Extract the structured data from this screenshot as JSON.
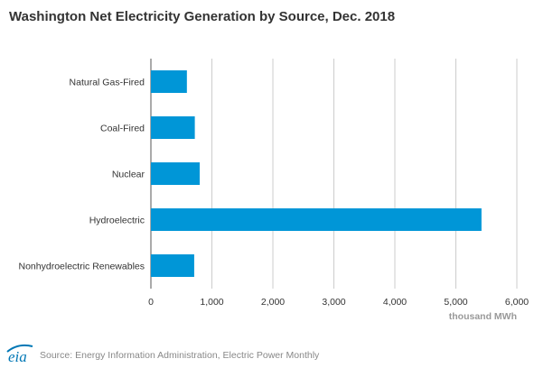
{
  "title": "Washington Net Electricity Generation by Source, Dec. 2018",
  "colors": {
    "bar": "#0096d7",
    "grid": "#cccccc",
    "axis": "#555555",
    "logo": "#0077b5"
  },
  "footer": {
    "logo_text": "eia",
    "source": "Source: Energy Information Administration, Electric Power Monthly"
  },
  "chart_data": {
    "type": "bar",
    "orientation": "horizontal",
    "title": "Washington Net Electricity Generation by Source, Dec. 2018",
    "categories": [
      "Natural Gas-Fired",
      "Coal-Fired",
      "Nuclear",
      "Hydroelectric",
      "Nonhydroelectric Renewables"
    ],
    "values": [
      590,
      720,
      800,
      5420,
      710
    ],
    "xlabel": "thousand MWh",
    "ylabel": "",
    "xlim": [
      0,
      6000
    ],
    "xticks": [
      0,
      1000,
      2000,
      3000,
      4000,
      5000,
      6000
    ],
    "xtick_labels": [
      "0",
      "1,000",
      "2,000",
      "3,000",
      "4,000",
      "5,000",
      "6,000"
    ],
    "grid": true,
    "legend": "none"
  }
}
